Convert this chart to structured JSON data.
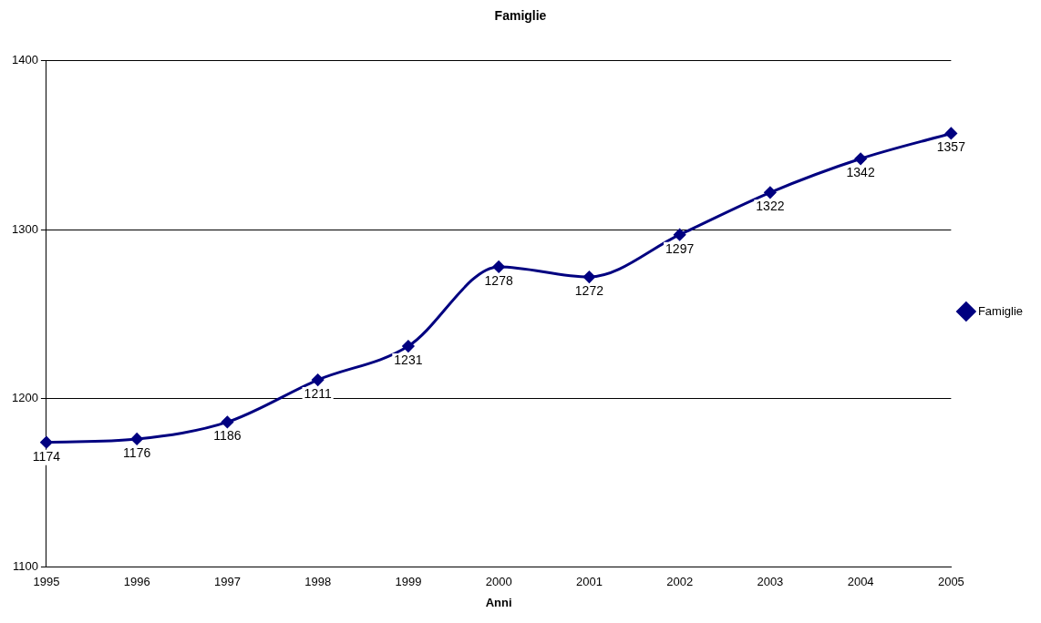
{
  "chart_data": {
    "type": "line",
    "title": "Famiglie",
    "xlabel": "Anni",
    "categories": [
      "1995",
      "1996",
      "1997",
      "1998",
      "1999",
      "2000",
      "2001",
      "2002",
      "2003",
      "2004",
      "2005"
    ],
    "series": [
      {
        "name": "Famiglie",
        "color": "#000080",
        "values": [
          1174,
          1176,
          1186,
          1211,
          1231,
          1278,
          1272,
          1297,
          1322,
          1342,
          1357
        ]
      }
    ],
    "ylim": [
      1100,
      1400
    ],
    "yticks": [
      1100,
      1200,
      1300,
      1400
    ],
    "grid": "y",
    "legend": "right",
    "marker": "diamond",
    "data_labels": true
  }
}
